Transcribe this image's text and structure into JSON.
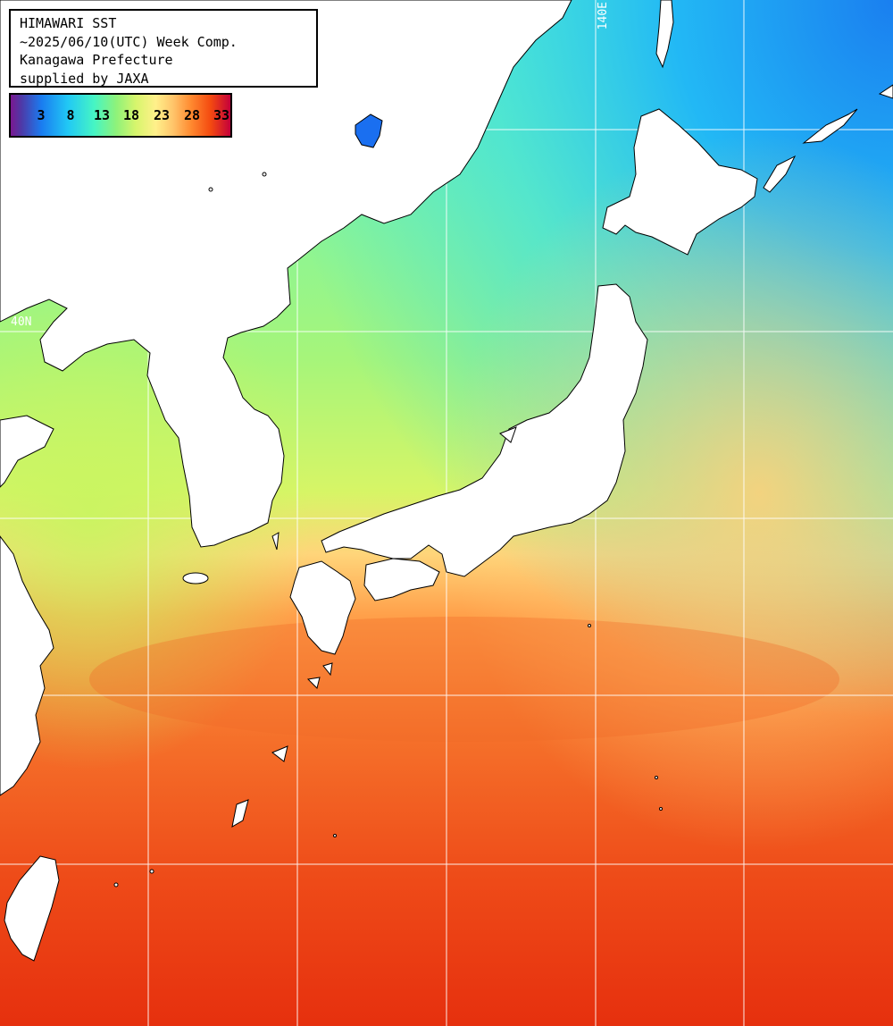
{
  "title": {
    "line1": "HIMAWARI SST",
    "line2": "~2025/06/10(UTC) Week Comp.",
    "line3": "Kanagawa Prefecture",
    "line4": "supplied by JAXA"
  },
  "colorbar": {
    "labels": [
      "3",
      "8",
      "13",
      "18",
      "23",
      "28",
      "33"
    ],
    "colors": [
      "#7a1890",
      "#1a7cf0",
      "#21c8f5",
      "#46f5c4",
      "#8ef27a",
      "#fff08a",
      "#ff8a30",
      "#f44a10",
      "#c4003a"
    ]
  },
  "grid": {
    "lon_label": "140E",
    "lat_label": "40N"
  },
  "colors": {
    "land": "#ffffff",
    "coastline": "#000000",
    "gridline": "#ffffff"
  }
}
